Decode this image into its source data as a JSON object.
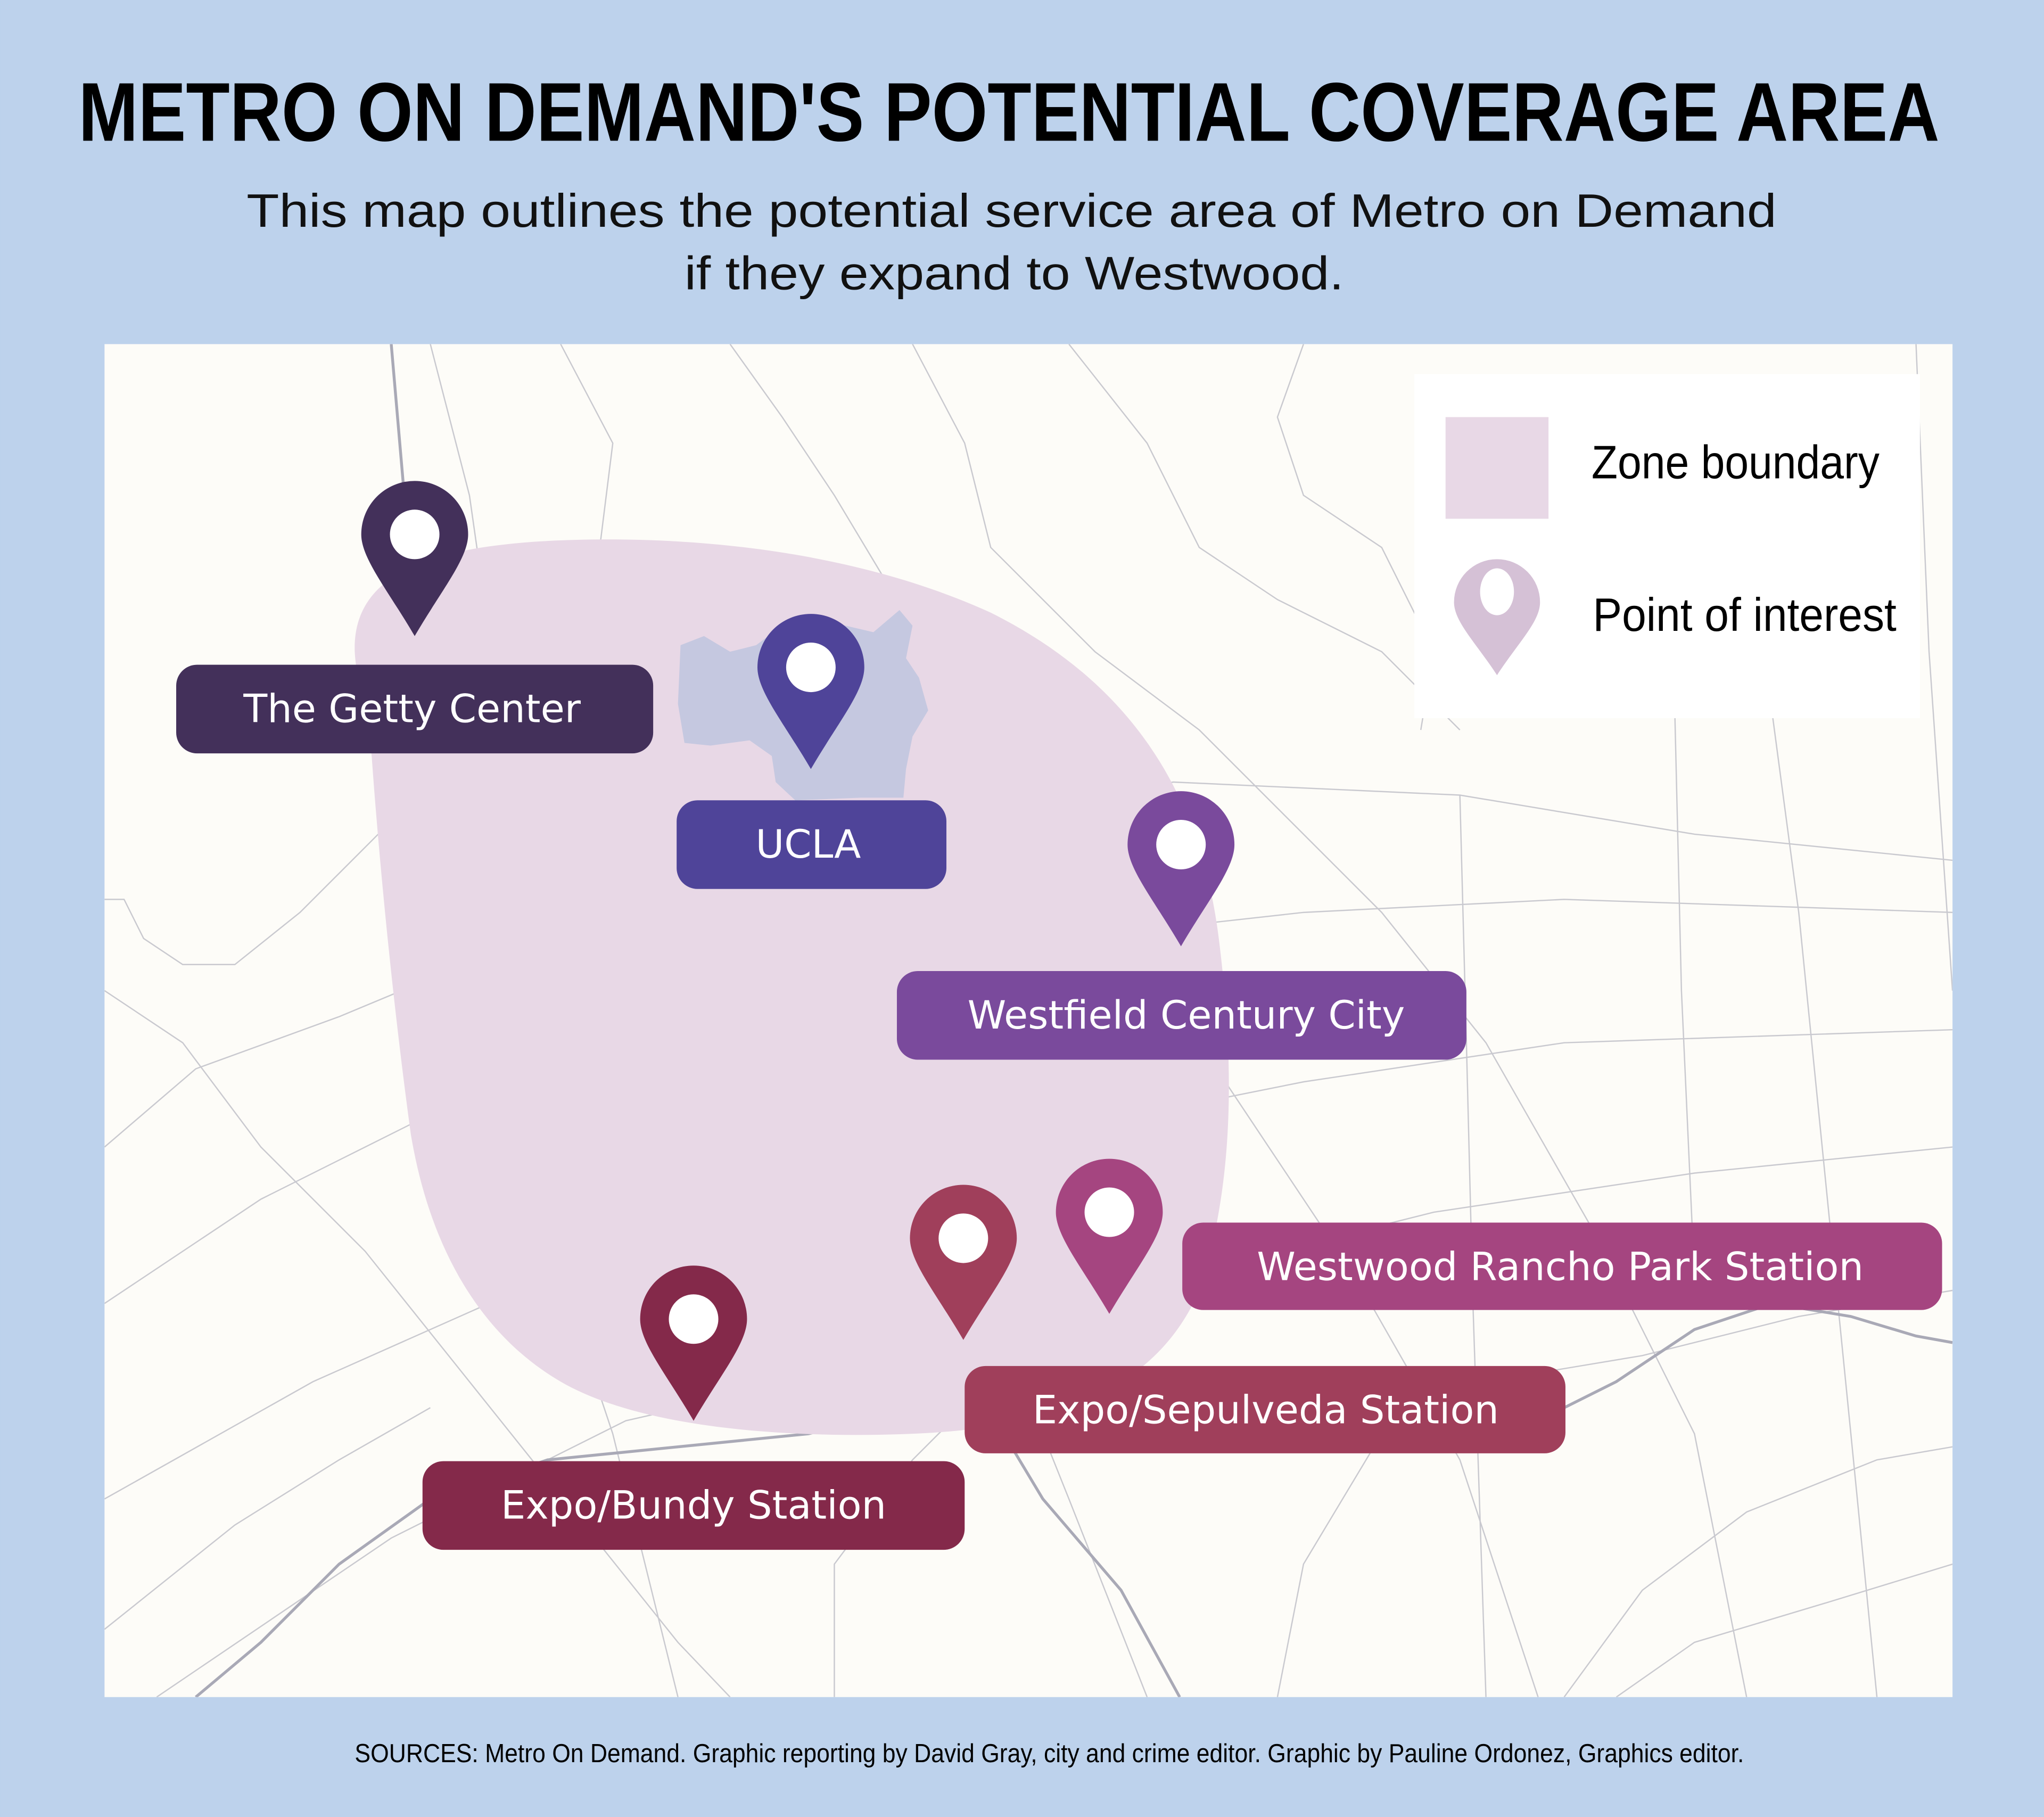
{
  "title": "METRO ON DEMAND'S POTENTIAL COVERAGE AREA",
  "subtitle": [
    "This map outlines the potential service area of Metro on Demand",
    "if they expand to Westwood."
  ],
  "legend": {
    "zone_label": "Zone boundary",
    "poi_label": "Point of interest",
    "zone_color": "#e8d8e6",
    "poi_color": "#d5c1d6"
  },
  "map": {
    "background_color": "#fdfcf8",
    "zone_color": "#e8d8e6",
    "ucla_area_color": "#c5c8e0"
  },
  "points": [
    {
      "name": "The Getty Center",
      "color": "#43305a"
    },
    {
      "name": "UCLA",
      "color": "#4f4499"
    },
    {
      "name": "Westfield Century City",
      "color": "#7a4a9c"
    },
    {
      "name": "Westwood Rancho Park Station",
      "color": "#a54580"
    },
    {
      "name": "Expo/Sepulveda Station",
      "color": "#a03f5b"
    },
    {
      "name": "Expo/Bundy Station",
      "color": "#84294a"
    }
  ],
  "footer": "SOURCES: Metro On Demand. Graphic reporting by David Gray, city and crime editor. Graphic by Pauline Ordonez, Graphics editor."
}
